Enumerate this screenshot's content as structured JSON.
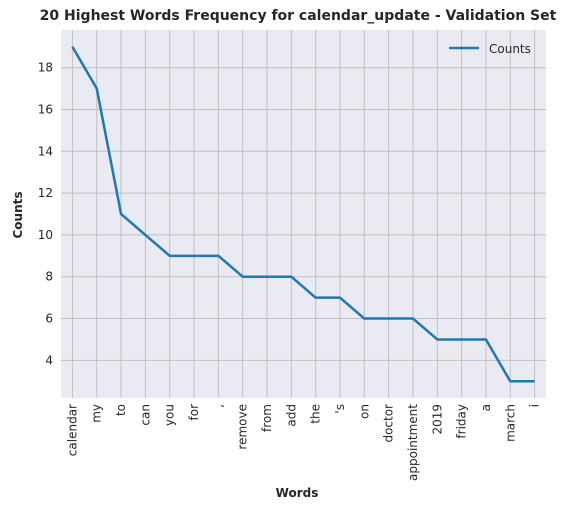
{
  "chart_data": {
    "type": "line",
    "title": "20 Highest Words Frequency for calendar_update - Validation Set",
    "xlabel": "Words",
    "ylabel": "Counts",
    "categories": [
      "calendar",
      "my",
      "to",
      "can",
      "you",
      "for",
      ",",
      "remove",
      "from",
      "add",
      "the",
      "'s",
      "on",
      "doctor",
      "appointment",
      "2019",
      "friday",
      "a",
      "march",
      "i"
    ],
    "series": [
      {
        "name": "Counts",
        "values": [
          19,
          17,
          11,
          10,
          9,
          9,
          9,
          8,
          8,
          8,
          7,
          7,
          6,
          6,
          6,
          5,
          5,
          5,
          3,
          3
        ],
        "color": "#1f77b4"
      }
    ],
    "ylim": [
      2.2,
      19.8
    ],
    "yticks": [
      4,
      6,
      8,
      10,
      12,
      14,
      16,
      18
    ],
    "grid": true,
    "legend_position": "top-right",
    "colors": {
      "plot_background": "#eaeaf2",
      "grid": "#c0c0c0",
      "text": "#262626"
    }
  }
}
